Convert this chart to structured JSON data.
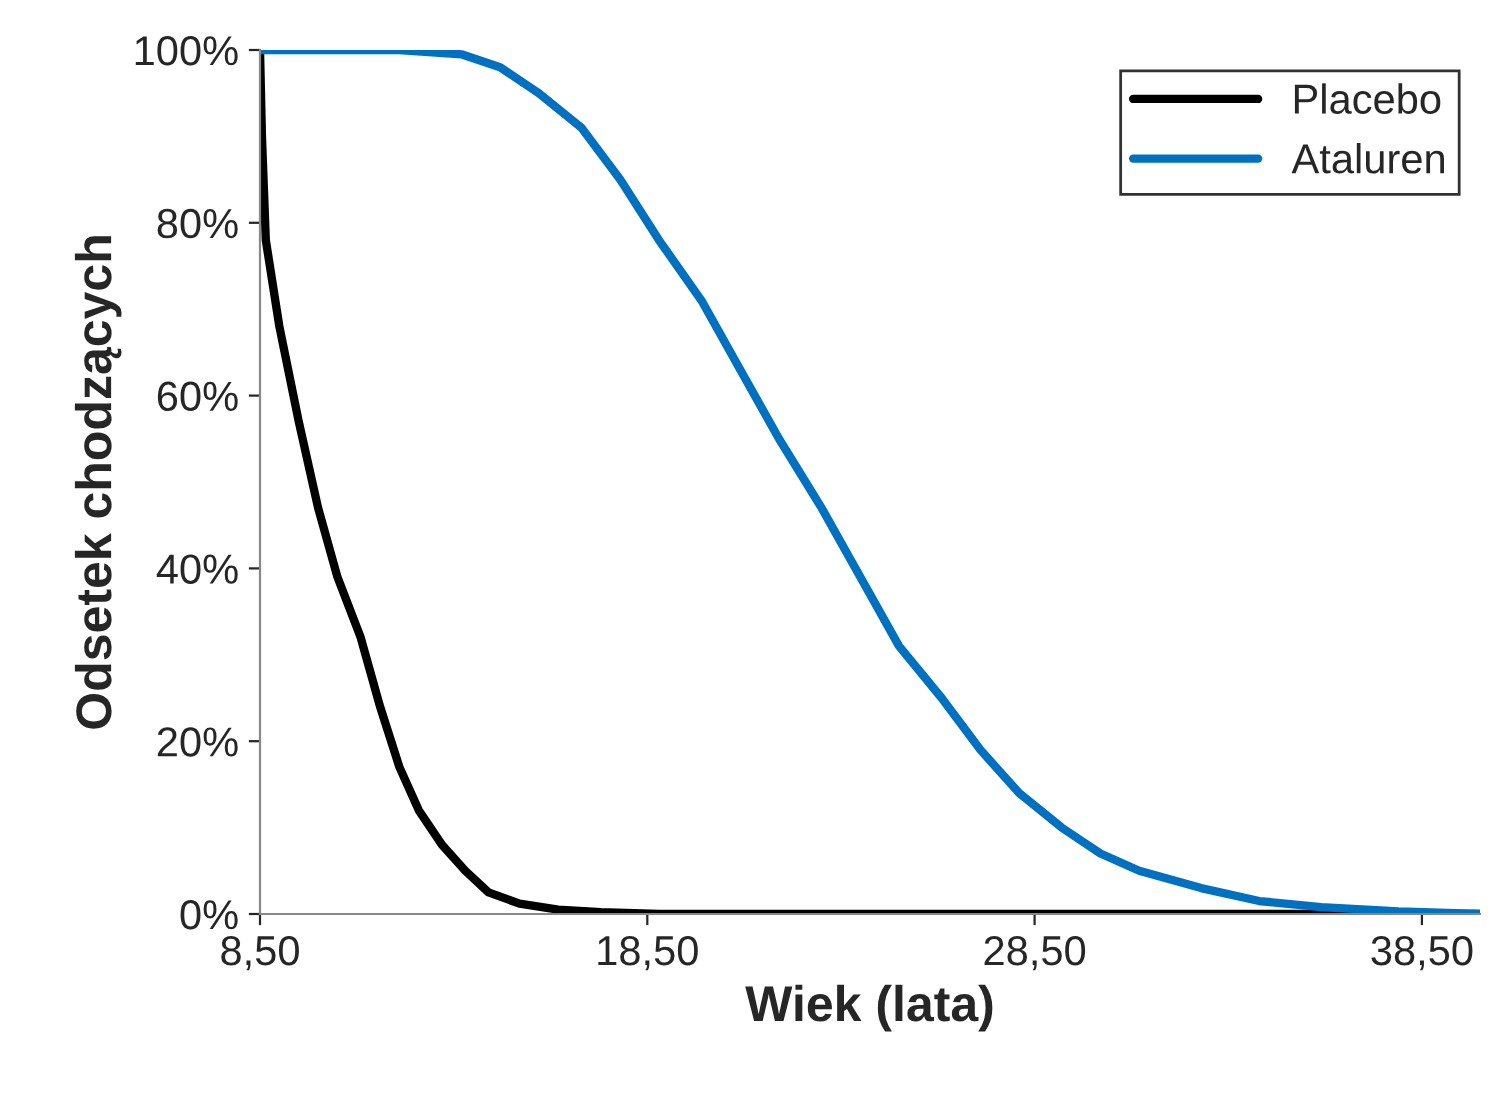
{
  "chart_data": {
    "type": "line",
    "xlabel": "Wiek (lata)",
    "ylabel": "Odsetek chodzących",
    "xlim": [
      8.5,
      40
    ],
    "ylim": [
      0,
      100
    ],
    "xticks": [
      {
        "value": 8.5,
        "label": "8,50"
      },
      {
        "value": 18.5,
        "label": "18,50"
      },
      {
        "value": 28.5,
        "label": "28,50"
      },
      {
        "value": 38.5,
        "label": "38,50"
      }
    ],
    "yticks": [
      {
        "value": 0,
        "label": "0%"
      },
      {
        "value": 20,
        "label": "20%"
      },
      {
        "value": 40,
        "label": "40%"
      },
      {
        "value": 60,
        "label": "60%"
      },
      {
        "value": 80,
        "label": "80%"
      },
      {
        "value": 100,
        "label": "100%"
      }
    ],
    "grid": false,
    "legend": "top right",
    "marker": "none",
    "line_style": "solid",
    "series": [
      {
        "name": "Placebo",
        "color": "#000000",
        "x": [
          8.5,
          8.55,
          8.65,
          9.0,
          9.5,
          10.0,
          10.5,
          11.1,
          11.6,
          12.1,
          12.6,
          13.2,
          13.8,
          14.4,
          15.2,
          16.2,
          17.3,
          18.8,
          40
        ],
        "values": [
          100,
          90,
          78,
          68,
          57,
          47,
          39,
          32,
          24,
          17,
          12,
          8,
          5,
          2.5,
          1.2,
          0.5,
          0.2,
          0,
          0
        ]
      },
      {
        "name": "Ataluren",
        "color": "#0070c0",
        "x": [
          8.5,
          12.1,
          13.7,
          14.7,
          15.7,
          16.8,
          17.8,
          18.8,
          19.9,
          20.9,
          21.9,
          23.0,
          24.0,
          25.0,
          26.1,
          27.1,
          28.1,
          29.2,
          30.2,
          31.2,
          32.8,
          34.3,
          35.9,
          37.9,
          40
        ],
        "values": [
          100,
          100,
          99.5,
          98,
          95,
          91,
          85,
          78,
          71,
          63,
          55,
          47,
          39,
          31,
          25,
          19,
          14,
          10,
          7,
          5,
          3,
          1.5,
          0.8,
          0.3,
          0
        ]
      }
    ]
  }
}
